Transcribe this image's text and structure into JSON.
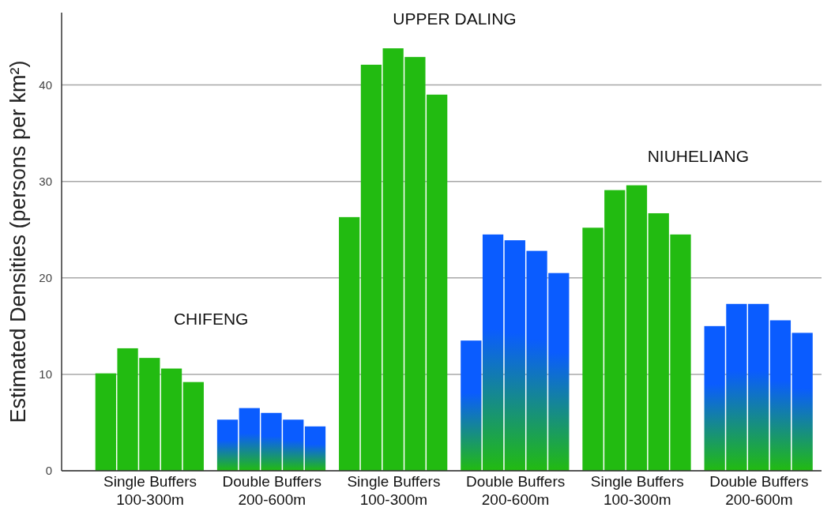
{
  "chart_data": {
    "type": "bar",
    "ylabel": "Estimated Densities (persons per km²)",
    "categories": [
      "Single Buffers\n100-300m",
      "Double Buffers\n200-600m",
      "Single Buffers\n100-300m",
      "Double Buffers\n200-600m",
      "Single Buffers\n100-300m",
      "Double Buffers\n200-600m"
    ],
    "series": [
      {
        "colors": [
          "#22bb11",
          "#0a5cff",
          "#22bb11",
          "#0a5cff",
          "#22bb11",
          "#0a5cff"
        ],
        "values": [
          10.1,
          5.3,
          26.3,
          13.5,
          25.2,
          15.0
        ]
      },
      {
        "colors": [
          "#22bb11",
          "#0a5cff",
          "#22bb11",
          "#0a5cff",
          "#22bb11",
          "#0a5cff"
        ],
        "values": [
          12.7,
          6.5,
          42.1,
          24.5,
          29.1,
          17.3
        ]
      },
      {
        "colors": [
          "#22bb11",
          "#0a5cff",
          "#22bb11",
          "#0a5cff",
          "#22bb11",
          "#0a5cff"
        ],
        "values": [
          11.7,
          6.0,
          43.8,
          23.9,
          29.6,
          17.3
        ]
      },
      {
        "colors": [
          "#22bb11",
          "#0a5cff",
          "#22bb11",
          "#0a5cff",
          "#22bb11",
          "#0a5cff"
        ],
        "values": [
          10.6,
          5.3,
          42.9,
          22.8,
          26.7,
          15.6
        ]
      },
      {
        "colors": [
          "#22bb11",
          "#0a5cff",
          "#22bb11",
          "#0a5cff",
          "#22bb11",
          "#0a5cff"
        ],
        "values": [
          9.2,
          4.6,
          39.0,
          20.5,
          24.5,
          14.3
        ]
      }
    ],
    "annotations": [
      "CHIFENG",
      "UPPER DALING",
      "NIUHELIANG"
    ],
    "ylim": [
      0,
      47.5
    ],
    "yticks": [
      0,
      10,
      20,
      30,
      40
    ],
    "grid": "y"
  }
}
